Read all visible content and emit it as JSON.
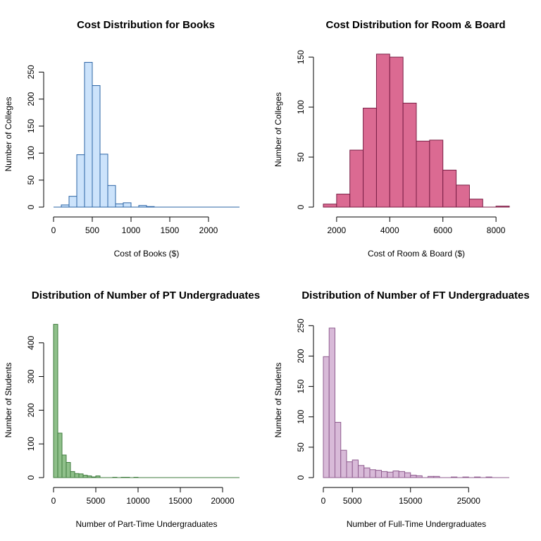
{
  "chart_data": [
    {
      "type": "bar",
      "title": "Cost Distribution for Books",
      "xlabel": "Cost of Books ($)",
      "ylabel": "Number of Colleges",
      "bin_width": 100,
      "bin_start": 0,
      "values": [
        0,
        4,
        20,
        97,
        268,
        225,
        98,
        40,
        6,
        8,
        0,
        3,
        1,
        0,
        0,
        0,
        0,
        0,
        0,
        0,
        0,
        0,
        0,
        0
      ],
      "xlim": [
        0,
        2400
      ],
      "ylim": [
        0,
        270
      ],
      "xticks": [
        0,
        500,
        1000,
        1500,
        2000
      ],
      "yticks": [
        0,
        50,
        100,
        150,
        200,
        250
      ],
      "fill": "#cce3fb",
      "stroke": "#2b64a6"
    },
    {
      "type": "bar",
      "title": "Cost Distribution for Room & Board",
      "xlabel": "Cost of Room & Board ($)",
      "ylabel": "Number of Colleges",
      "bin_width": 500,
      "bin_start": 1500,
      "values": [
        3,
        13,
        57,
        99,
        153,
        150,
        104,
        66,
        67,
        37,
        22,
        8,
        0,
        1
      ],
      "xlim": [
        1500,
        8500
      ],
      "ylim": [
        0,
        155
      ],
      "xticks": [
        2000,
        4000,
        6000,
        8000
      ],
      "yticks": [
        0,
        50,
        100,
        150
      ],
      "fill": "#db6a92",
      "stroke": "#7a1f46"
    },
    {
      "type": "bar",
      "title": "Distribution of Number of PT Undergraduates",
      "xlabel": "Number of Part-Time Undergraduates",
      "ylabel": "Number of Students",
      "bin_width": 500,
      "bin_start": 0,
      "values": [
        455,
        132,
        67,
        45,
        18,
        12,
        11,
        7,
        5,
        2,
        5,
        0,
        0,
        0,
        1,
        0,
        1,
        1,
        0,
        1,
        0,
        0,
        0,
        0,
        0,
        0,
        0,
        0,
        0,
        0,
        0,
        0,
        0,
        0,
        0,
        0,
        0,
        0,
        0,
        0,
        0,
        0,
        0,
        0
      ],
      "xlim": [
        0,
        22000
      ],
      "ylim": [
        0,
        460
      ],
      "xticks": [
        0,
        5000,
        10000,
        15000,
        20000
      ],
      "yticks": [
        0,
        100,
        200,
        300,
        400
      ],
      "fill": "#8fc08a",
      "stroke": "#3f7b3d"
    },
    {
      "type": "bar",
      "title": "Distribution of Number of FT Undergraduates",
      "xlabel": "Number of Full-Time Undergraduates",
      "ylabel": "Number of Students",
      "bin_width": 1000,
      "bin_start": 0,
      "values": [
        199,
        246,
        91,
        45,
        26,
        29,
        20,
        16,
        13,
        12,
        10,
        9,
        11,
        10,
        8,
        4,
        3,
        0,
        2,
        2,
        0,
        0,
        1,
        0,
        1,
        0,
        1,
        0,
        1,
        0,
        0,
        0
      ],
      "xlim": [
        0,
        32000
      ],
      "ylim": [
        0,
        255
      ],
      "xticks": [
        0,
        5000,
        15000,
        25000
      ],
      "yticks": [
        0,
        50,
        100,
        150,
        200,
        250
      ],
      "fill": "#d8bad8",
      "stroke": "#8f5c8f"
    }
  ]
}
